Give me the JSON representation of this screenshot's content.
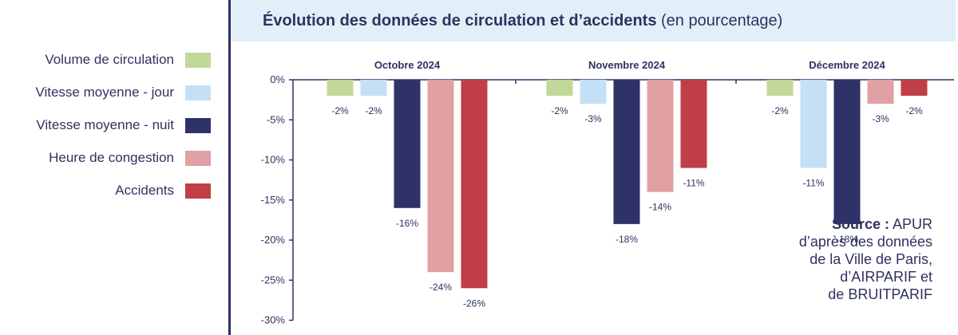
{
  "title": {
    "main": "Évolution des données de circulation et d’accidents",
    "sub": "(en pourcentage)"
  },
  "legend": [
    {
      "label": "Volume de circulation",
      "color": "#c1d89a"
    },
    {
      "label": "Vitesse moyenne - jour",
      "color": "#c4e0f6"
    },
    {
      "label": "Vitesse moyenne - nuit",
      "color": "#2e3267"
    },
    {
      "label": "Heure de congestion",
      "color": "#e0a0a4"
    },
    {
      "label": "Accidents",
      "color": "#c03e47"
    }
  ],
  "source": {
    "label": "Source :",
    "text_first": "APUR",
    "lines": [
      "d’après des données",
      "de la Ville de Paris,",
      "d’AIRPARIF et",
      "de BRUITPARIF"
    ]
  },
  "chart_data": {
    "type": "bar",
    "title": "Évolution des données de circulation et d’accidents (en pourcentage)",
    "categories": [
      "Octobre 2024",
      "Novembre 2024",
      "Décembre 2024"
    ],
    "series": [
      {
        "name": "Volume de circulation",
        "values": [
          -2,
          -2,
          -2
        ],
        "labels": [
          "-2%",
          "-2%",
          "-2%"
        ]
      },
      {
        "name": "Vitesse moyenne - jour",
        "values": [
          -2,
          -3,
          -11
        ],
        "labels": [
          "-2%",
          "-3%",
          "-11%"
        ]
      },
      {
        "name": "Vitesse moyenne - nuit",
        "values": [
          -16,
          -18,
          -18
        ],
        "labels": [
          "-16%",
          "-18%",
          "-18%"
        ]
      },
      {
        "name": "Heure de congestion",
        "values": [
          -24,
          -14,
          -3
        ],
        "labels": [
          "-24%",
          "-14%",
          "-3%"
        ]
      },
      {
        "name": "Accidents",
        "values": [
          -26,
          -11,
          -2
        ],
        "labels": [
          "-26%",
          "-11%",
          "-2%"
        ]
      }
    ],
    "ylim": [
      -30,
      0
    ],
    "yticks": [
      0,
      -5,
      -10,
      -15,
      -20,
      -25,
      -30
    ],
    "ytick_labels": [
      "0%",
      "-5%",
      "-10%",
      "-15%",
      "-20%",
      "-25%",
      "-30%"
    ],
    "xlabel": "",
    "ylabel": "",
    "grid": false,
    "legend_position": "left"
  }
}
